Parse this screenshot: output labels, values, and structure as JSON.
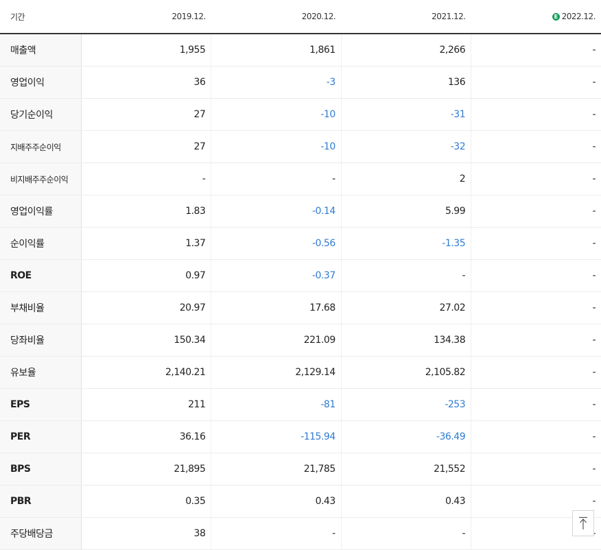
{
  "header": {
    "period_label": "기간",
    "years": [
      "2019.12.",
      "2020.12.",
      "2021.12.",
      "2022.12."
    ],
    "estimate_badge": "E"
  },
  "rows": [
    {
      "label": "매출액",
      "values": [
        "1,955",
        "1,861",
        "2,266",
        "-"
      ]
    },
    {
      "label": "영업이익",
      "values": [
        "36",
        "-3",
        "136",
        "-"
      ]
    },
    {
      "label": "당기순이익",
      "values": [
        "27",
        "-10",
        "-31",
        "-"
      ]
    },
    {
      "label": "지배주주순이익",
      "values": [
        "27",
        "-10",
        "-32",
        "-"
      ]
    },
    {
      "label": "비지배주주순이익",
      "values": [
        "-",
        "-",
        "2",
        "-"
      ]
    },
    {
      "label": "영업이익률",
      "values": [
        "1.83",
        "-0.14",
        "5.99",
        "-"
      ]
    },
    {
      "label": "순이익률",
      "values": [
        "1.37",
        "-0.56",
        "-1.35",
        "-"
      ]
    },
    {
      "label": "ROE",
      "values": [
        "0.97",
        "-0.37",
        "-",
        "-"
      ]
    },
    {
      "label": "부채비율",
      "values": [
        "20.97",
        "17.68",
        "27.02",
        "-"
      ]
    },
    {
      "label": "당좌비율",
      "values": [
        "150.34",
        "221.09",
        "134.38",
        "-"
      ]
    },
    {
      "label": "유보율",
      "values": [
        "2,140.21",
        "2,129.14",
        "2,105.82",
        "-"
      ]
    },
    {
      "label": "EPS",
      "values": [
        "211",
        "-81",
        "-253",
        "-"
      ]
    },
    {
      "label": "PER",
      "values": [
        "36.16",
        "-115.94",
        "-36.49",
        "-"
      ]
    },
    {
      "label": "BPS",
      "values": [
        "21,895",
        "21,785",
        "21,552",
        "-"
      ]
    },
    {
      "label": "PBR",
      "values": [
        "0.35",
        "0.43",
        "0.43",
        "-"
      ]
    },
    {
      "label": "주당배당금",
      "values": [
        "38",
        "-",
        "-",
        "-"
      ]
    }
  ],
  "colors": {
    "negative": "#2f7bd2",
    "estimate_badge": "#1a9e5c"
  },
  "scroll_top_icon": "arrow-up-to-line-icon"
}
